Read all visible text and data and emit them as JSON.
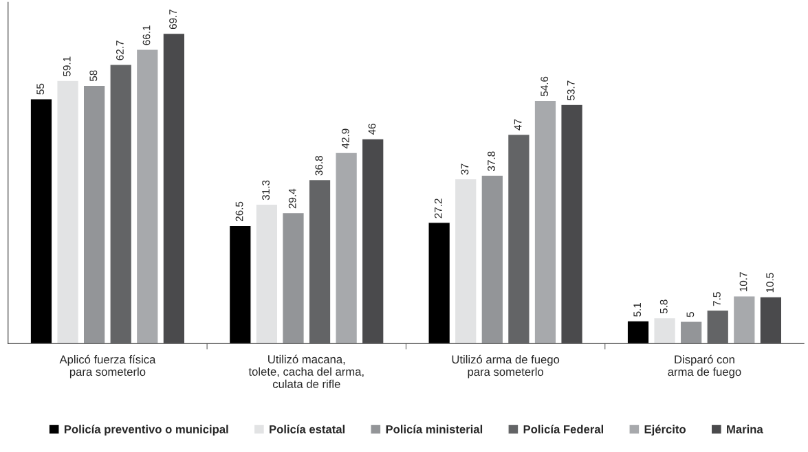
{
  "chart_data": {
    "type": "bar",
    "categories": [
      "Aplicó fuerza física\npara someterlo",
      "Utilizó macana,\ntolete, cacha del arma,\nculata de rifle",
      "Utilizó arma de fuego\npara someterlo",
      "Disparó con\narma de fuego"
    ],
    "series": [
      {
        "name": "Policía preventivo o municipal",
        "color": "#000000",
        "values": [
          55,
          26.5,
          27.2,
          5.1
        ]
      },
      {
        "name": "Policía estatal",
        "color": "#e2e3e4",
        "values": [
          59.1,
          31.3,
          37,
          5.8
        ]
      },
      {
        "name": "Policía ministerial",
        "color": "#939598",
        "values": [
          58,
          29.4,
          37.8,
          5
        ]
      },
      {
        "name": "Policía Federal",
        "color": "#636466",
        "values": [
          62.7,
          36.8,
          47,
          7.5
        ]
      },
      {
        "name": "Ejército",
        "color": "#a7a9ac",
        "values": [
          66.1,
          42.9,
          54.6,
          10.7
        ]
      },
      {
        "name": "Marina",
        "color": "#4a4a4c",
        "values": [
          69.7,
          46,
          53.7,
          10.5
        ]
      }
    ],
    "data_labels": true,
    "tick_labels": "x",
    "grid": false,
    "legend": "bottom"
  }
}
